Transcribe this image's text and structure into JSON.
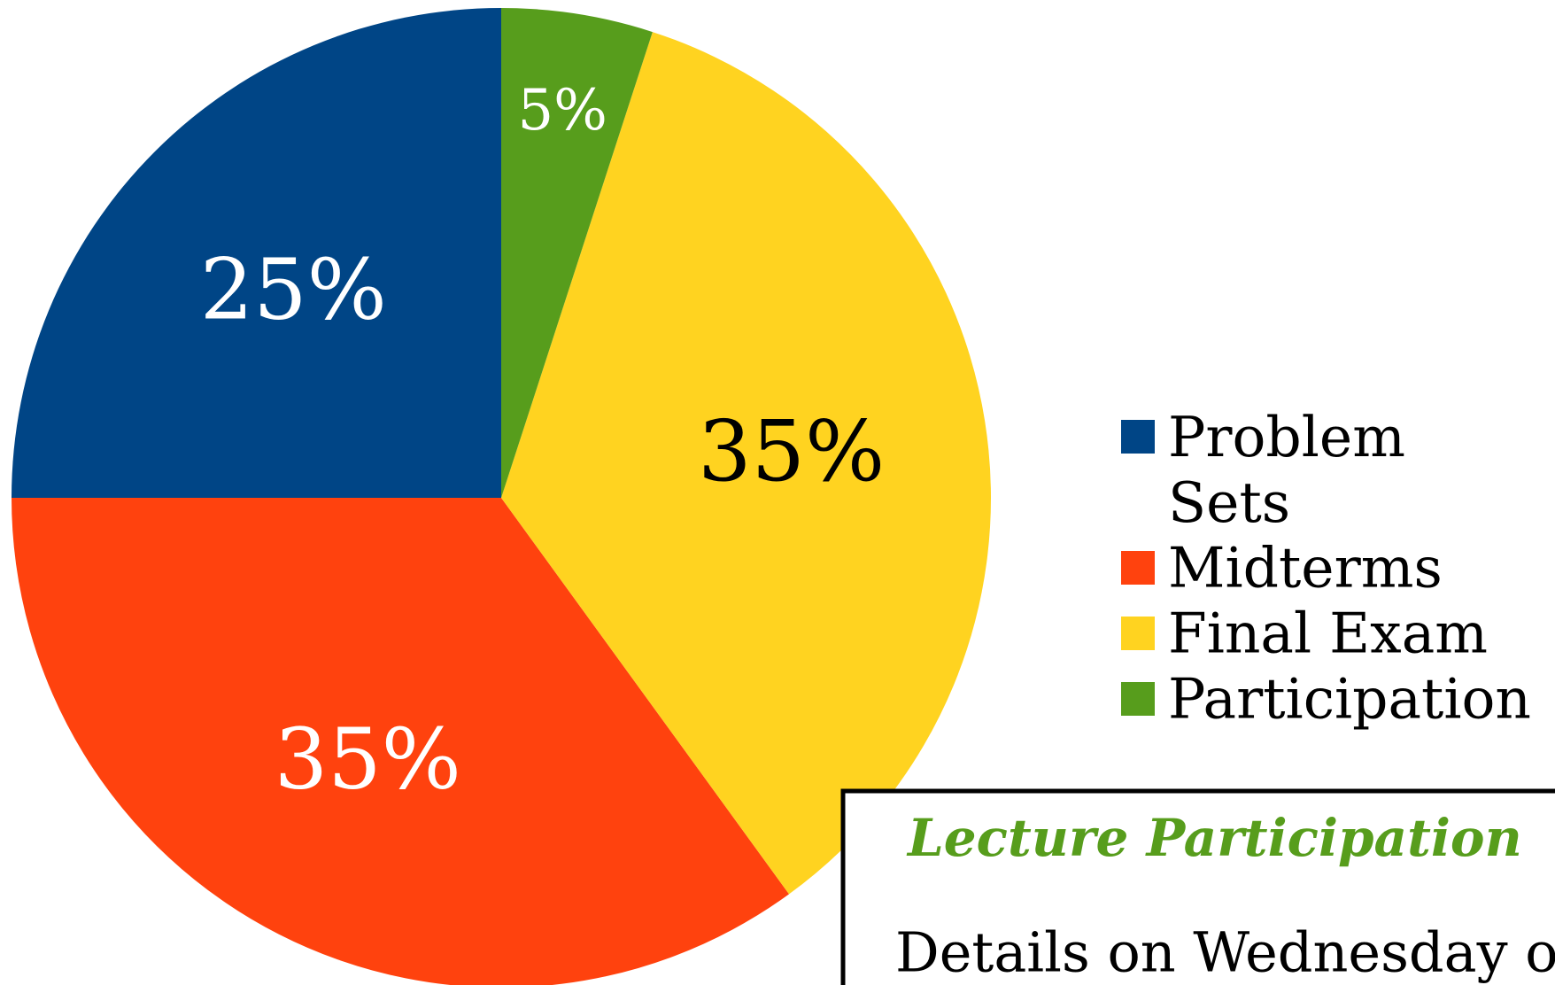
{
  "chart_data": {
    "type": "pie",
    "categories": [
      "Problem Sets",
      "Midterms",
      "Final Exam",
      "Participation"
    ],
    "values": [
      25,
      35,
      35,
      5
    ],
    "value_labels": [
      "25%",
      "35%",
      "35%",
      "5%"
    ],
    "colors": [
      "#004586",
      "#ff420e",
      "#ffd320",
      "#579d1c"
    ],
    "legend": "right",
    "note": {
      "title": "Lecture Participation",
      "text": "Details on Wednesday o"
    }
  }
}
